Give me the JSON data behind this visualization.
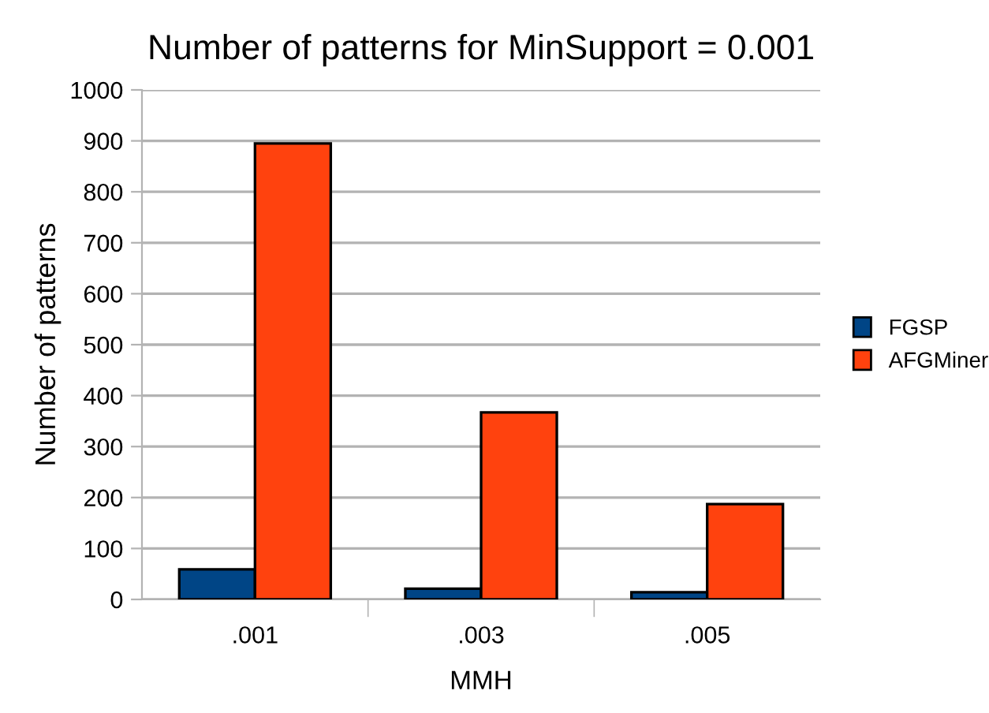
{
  "chart_data": {
    "type": "bar",
    "title": "Number of patterns for MinSupport = 0.001",
    "xlabel": "MMH",
    "ylabel": "Number of patterns",
    "categories": [
      ".001",
      ".003",
      ".005"
    ],
    "series": [
      {
        "name": "FGSP",
        "color": "#004586",
        "values": [
          59,
          21,
          14
        ]
      },
      {
        "name": "AFGMiner",
        "color": "#ff420e",
        "values": [
          895,
          367,
          187
        ]
      }
    ],
    "ylim": [
      0,
      1000
    ],
    "yticks": [
      0,
      100,
      200,
      300,
      400,
      500,
      600,
      700,
      800,
      900,
      1000
    ],
    "grid": "y",
    "legend": "right"
  }
}
